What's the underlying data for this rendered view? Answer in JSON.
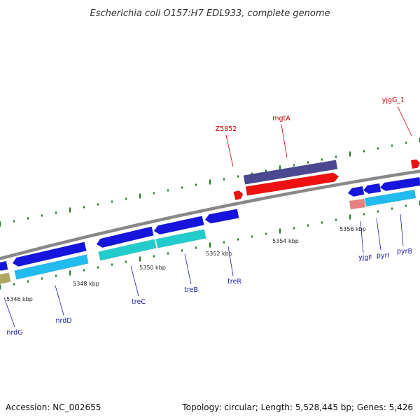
{
  "title": "Escherichia coli O157:H7 EDL933, complete genome",
  "accession_text": "Accession: NC_002655",
  "summary_text": "Topology: circular; Length: 5,528,445 bp; Genes: 5,426",
  "colors": {
    "backbone": "#888888",
    "tick_green": "#1e7a1e",
    "label_red": "#cc0000",
    "label_blue": "#1a1aaa",
    "gene_blue": "#1515dd",
    "gene_light_blue": "#22bbee",
    "gene_teal": "#22cccc",
    "gene_purple": "#4a4890",
    "gene_red": "#ee1111",
    "gene_pink": "#e88080",
    "gene_olive": "#b0a860"
  },
  "ticks": [
    "5346 kbp",
    "5348 kbp",
    "5350 kbp",
    "5352 kbp",
    "5354 kbp",
    "5356 kbp"
  ],
  "labels": {
    "Z5852": "Z5852",
    "mgtA": "mgtA",
    "yjgG_1": "yjgG_1",
    "nrdG": "nrdG",
    "nrdD": "nrdD",
    "treC": "treC",
    "treB": "treB",
    "treR": "treR",
    "yjgF": "yjgF",
    "pyrI": "pyrI",
    "pyrB": "pyrB"
  }
}
